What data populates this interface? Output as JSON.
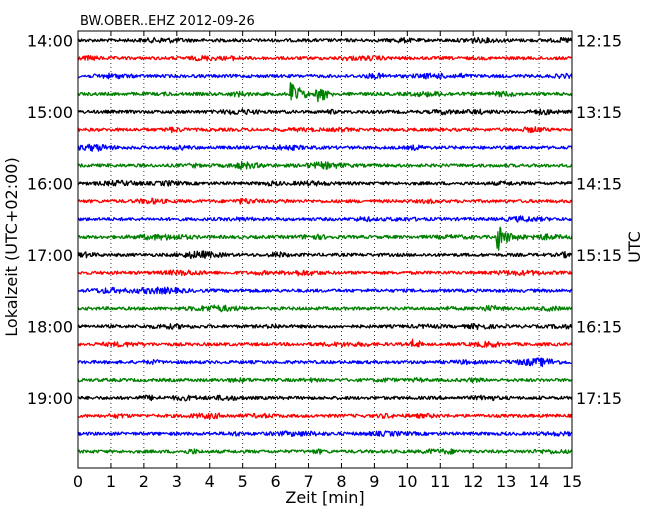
{
  "chart_data": {
    "type": "line",
    "title": "BW.OBER..EHZ 2012-09-26",
    "xlabel": "Zeit  [min]",
    "ylabel_left": "Lokalzeit (UTC+02:00)",
    "ylabel_right": "UTC",
    "xlim": [
      0,
      15
    ],
    "x_ticks": [
      "0",
      "1",
      "2",
      "3",
      "4",
      "5",
      "6",
      "7",
      "8",
      "9",
      "10",
      "11",
      "12",
      "13",
      "14",
      "15"
    ],
    "left_ticks": [
      "14:00",
      "15:00",
      "16:00",
      "17:00",
      "18:00",
      "19:00"
    ],
    "right_ticks": [
      "12:15",
      "13:15",
      "14:15",
      "15:15",
      "16:15",
      "17:15"
    ],
    "trace_count": 24,
    "traces_per_hour": 4,
    "trace_colors": [
      "#000000",
      "#ff0000",
      "#0000ff",
      "#008000"
    ],
    "grid": "vertical-dotted",
    "events": [
      {
        "trace": 3,
        "minute": 6.45,
        "amplitude": 3.6
      },
      {
        "trace": 3,
        "minute": 7.2,
        "amplitude": 2.8
      },
      {
        "trace": 11,
        "minute": 12.7,
        "amplitude": 4.0
      },
      {
        "trace": 17,
        "minute": 10.1,
        "amplitude": 1.3
      }
    ]
  }
}
